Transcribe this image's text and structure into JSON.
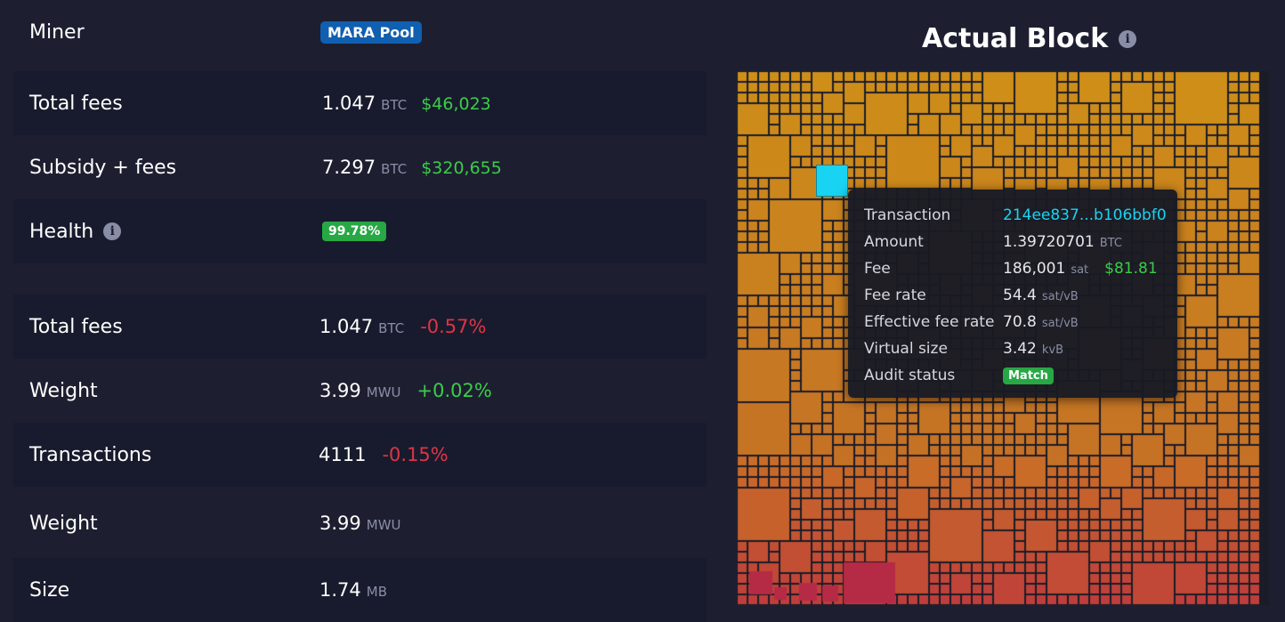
{
  "left": {
    "miner": {
      "label": "Miner",
      "pool": "MARA Pool"
    },
    "total_fees": {
      "label": "Total fees",
      "value": "1.047",
      "unit": "BTC",
      "fiat": "$46,023"
    },
    "subsidy_fees": {
      "label": "Subsidy + fees",
      "value": "7.297",
      "unit": "BTC",
      "fiat": "$320,655"
    },
    "health": {
      "label": "Health",
      "value": "99.78%"
    },
    "expected_total_fees": {
      "label": "Total fees",
      "value": "1.047",
      "unit": "BTC",
      "delta": "-0.57%"
    },
    "expected_weight": {
      "label": "Weight",
      "value": "3.99",
      "unit": "MWU",
      "delta": "+0.02%"
    },
    "transactions": {
      "label": "Transactions",
      "value": "4111",
      "delta": "-0.15%"
    },
    "weight": {
      "label": "Weight",
      "value": "3.99",
      "unit": "MWU"
    },
    "size": {
      "label": "Size",
      "value": "1.74",
      "unit": "MB"
    }
  },
  "right": {
    "title": "Actual Block",
    "tooltip": {
      "transaction_label": "Transaction",
      "transaction_value": "214ee837...b106bbf0",
      "amount_label": "Amount",
      "amount_value": "1.39720701",
      "amount_unit": "BTC",
      "fee_label": "Fee",
      "fee_value": "186,001",
      "fee_unit": "sat",
      "fee_fiat": "$81.81",
      "fee_rate_label": "Fee rate",
      "fee_rate_value": "54.4",
      "fee_rate_unit": "sat/vB",
      "eff_rate_label": "Effective fee rate",
      "eff_rate_value": "70.8",
      "eff_rate_unit": "sat/vB",
      "vsize_label": "Virtual size",
      "vsize_value": "3.42",
      "vsize_unit": "kvB",
      "audit_label": "Audit status",
      "audit_value": "Match"
    }
  },
  "colors": {
    "background": "#1d1f31",
    "row_dark": "#181b2d",
    "positive": "#3bcc49",
    "negative": "#dc3545",
    "pool_badge": "#105fb0",
    "health_badge": "#28a745",
    "highlight": "#19d3f3"
  },
  "icons": {
    "info": "info-circle-icon"
  }
}
